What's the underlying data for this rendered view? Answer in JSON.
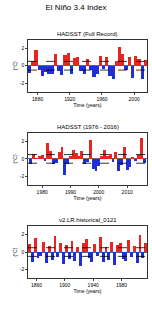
{
  "title": "El Niño 3.4 Index",
  "chart_data": [
    {
      "type": "bar",
      "title": "HADSST (Full Record)",
      "x_label": "Time (years)",
      "y_label": "(°C)",
      "x": [
        1870,
        1874,
        1878,
        1882,
        1886,
        1890,
        1894,
        1898,
        1902,
        1906,
        1910,
        1914,
        1918,
        1922,
        1926,
        1930,
        1934,
        1938,
        1942,
        1946,
        1950,
        1954,
        1958,
        1962,
        1966,
        1970,
        1974,
        1978,
        1982,
        1986,
        1990,
        1994,
        1998,
        2002,
        2006,
        2010,
        2014
      ],
      "series": [
        {
          "color": "#e8251f",
          "values": [
            null,
            0.6,
            1.8,
            null,
            null,
            null,
            null,
            null,
            1.4,
            null,
            null,
            1.2,
            1.5,
            null,
            0.9,
            1.0,
            null,
            null,
            0.8,
            null,
            null,
            null,
            1.1,
            null,
            1.0,
            null,
            null,
            0.6,
            2.2,
            1.3,
            null,
            1.0,
            null,
            1.1,
            0.8,
            null,
            0.7
          ]
        },
        {
          "color": "#1f2fd6",
          "values": [
            -0.8,
            null,
            null,
            -0.5,
            -1.2,
            -0.7,
            -0.9,
            -1.0,
            null,
            -0.6,
            -1.1,
            null,
            null,
            -0.9,
            null,
            null,
            -0.6,
            -1.0,
            null,
            -0.5,
            -1.3,
            -1.0,
            null,
            -0.4,
            null,
            -1.2,
            -1.5,
            null,
            null,
            null,
            -0.5,
            null,
            -1.4,
            null,
            null,
            -1.5,
            null
          ]
        }
      ],
      "reference_lines": [
        0.5,
        -0.5
      ],
      "xlim": [
        1868,
        2016
      ],
      "xticks": [
        1880,
        1920,
        1960,
        2000
      ],
      "ylim": [
        -3,
        3
      ],
      "yticks": [
        -2,
        0,
        2
      ]
    },
    {
      "type": "bar",
      "title": "HADSST (1976 - 2016)",
      "x_label": "Time (years)",
      "y_label": "(°C)",
      "x": [
        1976,
        1977,
        1978,
        1979,
        1980,
        1981,
        1982,
        1983,
        1984,
        1985,
        1986,
        1987,
        1988,
        1989,
        1990,
        1991,
        1992,
        1993,
        1994,
        1995,
        1996,
        1997,
        1998,
        1999,
        2000,
        2001,
        2002,
        2003,
        2004,
        2005,
        2006,
        2007,
        2008,
        2009,
        2010,
        2011,
        2012,
        2013,
        2014,
        2015,
        2016
      ],
      "series": [
        {
          "color": "#e8251f",
          "values": [
            null,
            0.6,
            0.1,
            0.3,
            0.4,
            null,
            1.8,
            0.9,
            null,
            null,
            0.8,
            1.4,
            null,
            null,
            0.3,
            1.0,
            0.7,
            0.3,
            0.9,
            null,
            null,
            2.2,
            null,
            null,
            null,
            0.3,
            1.0,
            0.3,
            0.6,
            null,
            0.8,
            null,
            null,
            1.4,
            null,
            null,
            0.2,
            null,
            0.5,
            2.4,
            null
          ]
        },
        {
          "color": "#1f2fd6",
          "values": [
            -0.6,
            null,
            null,
            null,
            null,
            -0.3,
            null,
            null,
            -0.6,
            -0.5,
            null,
            null,
            -1.8,
            -0.6,
            null,
            null,
            null,
            null,
            null,
            -0.6,
            -0.4,
            null,
            -1.2,
            -1.4,
            -0.8,
            null,
            null,
            null,
            null,
            -0.4,
            null,
            -1.4,
            -0.7,
            null,
            -1.3,
            -0.9,
            null,
            -0.3,
            null,
            null,
            -0.5
          ]
        }
      ],
      "reference_lines": [
        0.5,
        -0.5
      ],
      "xlim": [
        1975,
        2017
      ],
      "xticks": [
        1980,
        1990,
        2000,
        2010
      ],
      "ylim": [
        -3,
        3
      ],
      "yticks": [
        -2,
        0,
        2
      ]
    },
    {
      "type": "bar",
      "title": "v2.LR.historical_0121",
      "x_label": "Time (years)",
      "y_label": "(°C)",
      "x": [
        1850,
        1854,
        1858,
        1862,
        1866,
        1870,
        1874,
        1878,
        1882,
        1886,
        1890,
        1894,
        1898,
        1902,
        1906,
        1910,
        1914,
        1918,
        1922,
        1926,
        1930,
        1934,
        1938,
        1942,
        1946,
        1950,
        1954,
        1958,
        1962,
        1966,
        1970,
        1974,
        1978,
        1982,
        1986,
        1990,
        1994,
        1998,
        2002,
        2006,
        2010,
        2014
      ],
      "series": [
        {
          "color": "#e8251f",
          "values": [
            0.9,
            null,
            1.6,
            null,
            null,
            1.2,
            null,
            0.7,
            null,
            1.9,
            null,
            1.1,
            null,
            0.8,
            null,
            1.3,
            null,
            0.6,
            null,
            1.0,
            1.5,
            null,
            null,
            0.9,
            null,
            1.7,
            null,
            0.6,
            null,
            1.2,
            null,
            0.8,
            1.1,
            null,
            null,
            1.4,
            null,
            0.7,
            null,
            2.0,
            null,
            1.0
          ]
        },
        {
          "color": "#1f2fd6",
          "values": [
            null,
            -1.1,
            null,
            -0.7,
            -0.5,
            null,
            -1.3,
            null,
            -0.9,
            null,
            -0.6,
            null,
            -1.4,
            null,
            -0.8,
            null,
            -1.0,
            null,
            -1.6,
            null,
            null,
            -0.7,
            -1.1,
            null,
            -0.5,
            null,
            -1.2,
            null,
            -0.9,
            null,
            -1.5,
            null,
            null,
            -0.8,
            -1.0,
            null,
            -0.6,
            null,
            -1.3,
            null,
            -0.7,
            null
          ]
        }
      ],
      "reference_lines": [
        0.5,
        -0.5
      ],
      "xlim": [
        1848,
        2016
      ],
      "xticks": [
        1860,
        1900,
        1940,
        1980
      ],
      "ylim": [
        -3,
        3
      ],
      "yticks": [
        -2,
        0,
        2
      ]
    }
  ]
}
